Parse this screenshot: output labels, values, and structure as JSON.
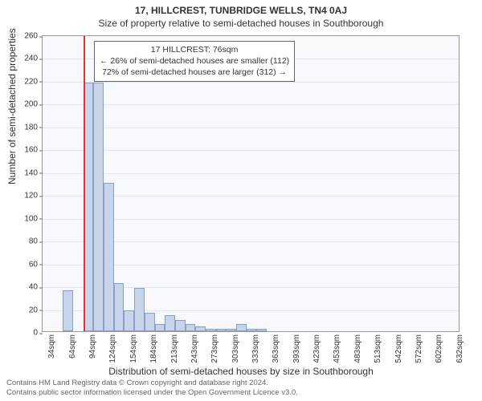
{
  "title_main": "17, HILLCREST, TUNBRIDGE WELLS, TN4 0AJ",
  "title_sub": "Size of property relative to semi-detached houses in Southborough",
  "xlabel": "Distribution of semi-detached houses by size in Southborough",
  "ylabel": "Number of semi-detached properties",
  "chart": {
    "type": "histogram",
    "ylim": [
      0,
      260
    ],
    "ytick_step": 20,
    "ytick_font": 10,
    "background_color": "#f7f9fc",
    "grid_color": "#e3e7ee",
    "border_color": "#999999",
    "bar_fill": "#c8d4ea",
    "bar_border": "#8aa0c8",
    "highlight_color": "#d33333",
    "highlight_x_index": 4,
    "x_categories": [
      "34sqm",
      "64sqm",
      "94sqm",
      "124sqm",
      "154sqm",
      "184sqm",
      "213sqm",
      "243sqm",
      "273sqm",
      "303sqm",
      "333sqm",
      "363sqm",
      "393sqm",
      "423sqm",
      "453sqm",
      "483sqm",
      "513sqm",
      "542sqm",
      "572sqm",
      "602sqm",
      "632sqm"
    ],
    "bin_count": 41,
    "values": [
      0,
      0,
      36,
      0,
      218,
      218,
      130,
      42,
      18,
      38,
      16,
      6,
      14,
      10,
      6,
      4,
      2,
      2,
      2,
      6,
      2,
      2,
      0,
      0,
      0,
      0,
      0,
      0,
      0,
      0,
      0,
      0,
      0,
      0,
      0,
      0,
      0,
      0,
      0,
      0,
      0
    ]
  },
  "annotation": {
    "line1": "17 HILLCREST: 76sqm",
    "line2": "← 26% of semi-detached houses are smaller (112)",
    "line3": "72% of semi-detached houses are larger (312) →"
  },
  "footer": {
    "line1": "Contains HM Land Registry data © Crown copyright and database right 2024.",
    "line2": "Contains public sector information licensed under the Open Government Licence v3.0."
  }
}
